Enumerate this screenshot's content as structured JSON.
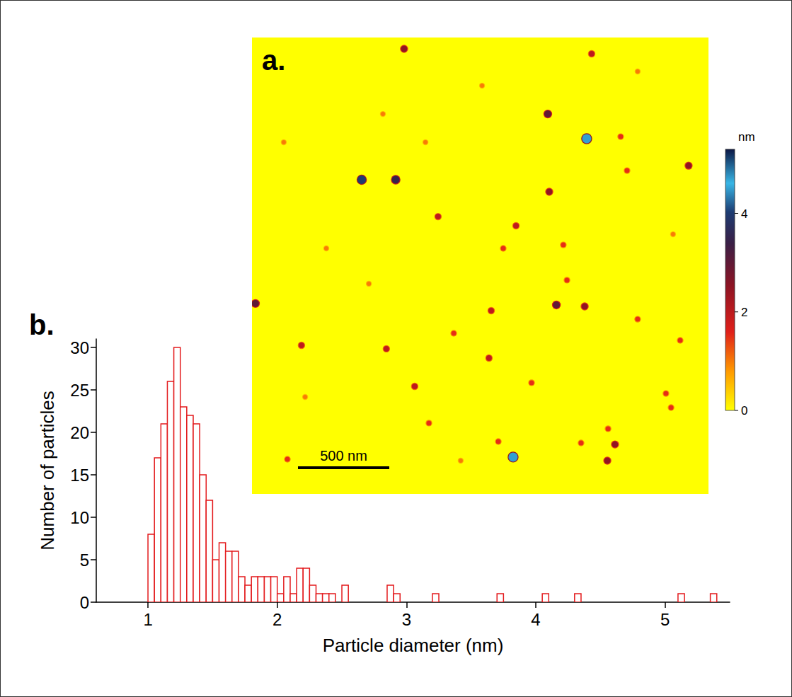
{
  "chart_data": {
    "type": "histogram",
    "panel": "b.",
    "x_label": "Particle diameter (nm)",
    "y_label": "Number of particles",
    "bins": [
      1,
      1.05,
      1.1,
      1.15,
      1.2,
      1.25,
      1.3,
      1.35,
      1.4,
      1.45,
      1.5,
      1.55,
      1.6,
      1.65,
      1.7,
      1.75,
      1.8,
      1.85,
      1.9,
      1.95,
      2,
      2.05,
      2.1,
      2.15,
      2.2,
      2.25,
      2.3,
      2.35,
      2.4,
      2.45,
      2.5,
      2.55,
      2.6,
      2.65,
      2.7,
      2.75,
      2.8,
      2.85,
      2.9,
      2.95,
      3,
      3.05,
      3.1,
      3.15,
      3.2,
      3.25,
      3.3,
      3.35,
      3.4,
      3.45,
      3.5,
      3.55,
      3.6,
      3.65,
      3.7,
      3.75,
      3.8,
      3.85,
      3.9,
      3.95,
      4,
      4.05,
      4.1,
      4.15,
      4.2,
      4.25,
      4.3,
      4.35,
      4.4,
      4.45,
      4.5,
      4.55,
      4.6,
      4.65,
      4.7,
      4.75,
      4.8,
      4.85,
      4.9,
      4.95,
      5,
      5.05,
      5.1,
      5.15,
      5.2,
      5.25,
      5.3,
      5.35,
      5.4
    ],
    "counts": [
      8,
      17,
      21,
      26,
      30,
      23,
      22,
      21,
      15,
      12,
      5,
      7,
      6,
      6,
      3,
      2,
      3,
      3,
      3,
      3,
      1,
      3,
      1,
      4,
      4,
      2,
      1,
      1,
      1,
      0,
      2,
      0,
      0,
      0,
      0,
      0,
      0,
      2,
      1,
      0,
      0,
      0,
      0,
      0,
      1,
      0,
      0,
      0,
      0,
      0,
      0,
      0,
      0,
      0,
      1,
      0,
      0,
      0,
      0,
      0,
      0,
      1,
      0,
      0,
      0,
      0,
      1,
      0,
      0,
      0,
      0,
      0,
      0,
      0,
      0,
      0,
      0,
      0,
      0,
      0,
      0,
      0,
      1,
      0,
      0,
      0,
      0,
      1
    ],
    "color": "#e31a1c",
    "xlim": [
      0.6,
      5.5
    ],
    "xticks": [
      1,
      2,
      3,
      4,
      5
    ],
    "ylim": [
      0,
      31
    ],
    "yticks": [
      0,
      5,
      10,
      15,
      20,
      25,
      30
    ],
    "grid": false
  },
  "image": {
    "type": "afm_height_map",
    "panel": "a.",
    "width": 2500,
    "height": 2500,
    "scale_bar": {
      "length": 500,
      "label": "500 nm"
    },
    "colorbar": {
      "label": "nm",
      "range": [
        0,
        5.3
      ],
      "ticks": [
        0,
        2,
        4
      ]
    },
    "particles": [
      [
        833,
        62,
        2.5
      ],
      [
        1860,
        89,
        2
      ],
      [
        2391,
        702,
        2.5
      ],
      [
        1620,
        419,
        3
      ],
      [
        1833,
        554,
        4.5
      ],
      [
        601,
        779,
        4
      ],
      [
        787,
        779,
        3.5
      ],
      [
        1628,
        845,
        2.5
      ],
      [
        1019,
        981,
        2
      ],
      [
        2019,
        543,
        1.5
      ],
      [
        2054,
        729,
        1.5
      ],
      [
        1705,
        1136,
        1.5
      ],
      [
        1446,
        1031,
        2
      ],
      [
        1667,
        1465,
        3
      ],
      [
        1822,
        1473,
        2.5
      ],
      [
        1725,
        1329,
        1.5
      ],
      [
        1310,
        1496,
        2
      ],
      [
        19,
        1457,
        3
      ],
      [
        271,
        1686,
        2
      ],
      [
        736,
        1705,
        2
      ],
      [
        891,
        1911,
        2
      ],
      [
        969,
        2112,
        1.5
      ],
      [
        1349,
        2213,
        1.5
      ],
      [
        1430,
        2298,
        4.5
      ],
      [
        1988,
        2229,
        2.5
      ],
      [
        1950,
        2143,
        1.5
      ],
      [
        1946,
        2318,
        2.5
      ],
      [
        1802,
        2221,
        1.5
      ],
      [
        2267,
        1950,
        1.5
      ],
      [
        2295,
        2027,
        1.5
      ],
      [
        194,
        2310,
        1.5
      ],
      [
        1298,
        1756,
        2
      ],
      [
        1531,
        1891,
        1.5
      ],
      [
        1105,
        1620,
        1.5
      ],
      [
        1376,
        1155,
        1.5
      ],
      [
        2112,
        1543,
        1.5
      ],
      [
        2345,
        1659,
        1.5
      ],
      [
        407,
        1155,
        1
      ],
      [
        640,
        1349,
        1
      ],
      [
        950,
        574,
        1
      ],
      [
        1260,
        264,
        1
      ],
      [
        2112,
        186,
        1
      ],
      [
        2306,
        1078,
        1
      ],
      [
        174,
        574,
        1
      ],
      [
        291,
        1969,
        1
      ],
      [
        1143,
        2318,
        1
      ],
      [
        717,
        419,
        1
      ]
    ]
  }
}
